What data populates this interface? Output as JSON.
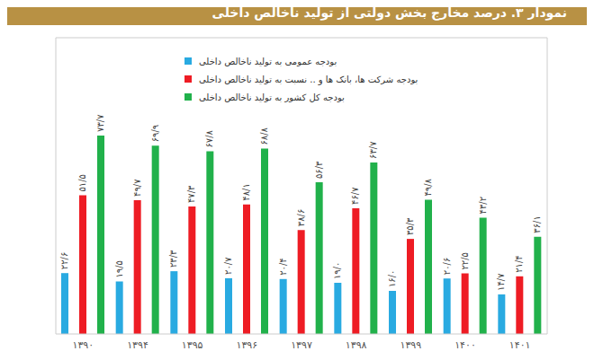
{
  "chart_data": {
    "type": "bar",
    "title": "نمودار ۳. درصد مخارج بخش دولتی از تولید ناخالص داخلی",
    "categories": [
      "۱۳۹۰",
      "۱۳۹۴",
      "۱۳۹۵",
      "۱۳۹۶",
      "۱۳۹۷",
      "۱۳۹۸",
      "۱۳۹۹",
      "۱۴۰۰",
      "۱۴۰۱"
    ],
    "series": [
      {
        "name": "بودجه عمومی به تولید ناخالص داخلی",
        "color": "#29aae1",
        "values": [
          22.6,
          19.5,
          23.3,
          20.7,
          20.4,
          19.0,
          16.0,
          20.6,
          14.7
        ],
        "value_labels": [
          "۲۲/۶",
          "۱۹/۵",
          "۲۳/۳",
          "۲۰/۷",
          "۲۰/۴",
          "۱۹/۰",
          "۱۶/۰",
          "۲۰/۶",
          "۱۴/۷"
        ]
      },
      {
        "name": "بودجه شرکت ها، بانک ها و .. نسبت به تولید ناخالص داخلی",
        "color": "#ee1c24",
        "values": [
          51.5,
          49.7,
          47.3,
          48.1,
          38.6,
          46.7,
          35.3,
          22.5,
          21.4
        ],
        "value_labels": [
          "۵۱/۵",
          "۴۹/۷",
          "۴۷/۳",
          "۴۸/۱",
          "۳۸/۶",
          "۴۶/۷",
          "۳۵/۳",
          "۲۲/۵",
          "۲۱/۴"
        ]
      },
      {
        "name": "بودجه کل کشور به تولید ناخالص داخلی",
        "color": "#21b14b",
        "values": [
          73.7,
          69.9,
          67.8,
          68.8,
          56.3,
          63.7,
          49.8,
          43.2,
          36.1
        ],
        "value_labels": [
          "۷۳/۷",
          "۶۹/۹",
          "۶۷/۸",
          "۶۸/۸",
          "۵۶/۳",
          "۶۳/۷",
          "۴۹/۸",
          "۴۳/۲",
          "۳۶/۱"
        ]
      }
    ],
    "ylim": [
      0,
      110
    ],
    "data_labels": true,
    "tick_labels": "x",
    "legend": "top-left",
    "grid": false
  }
}
